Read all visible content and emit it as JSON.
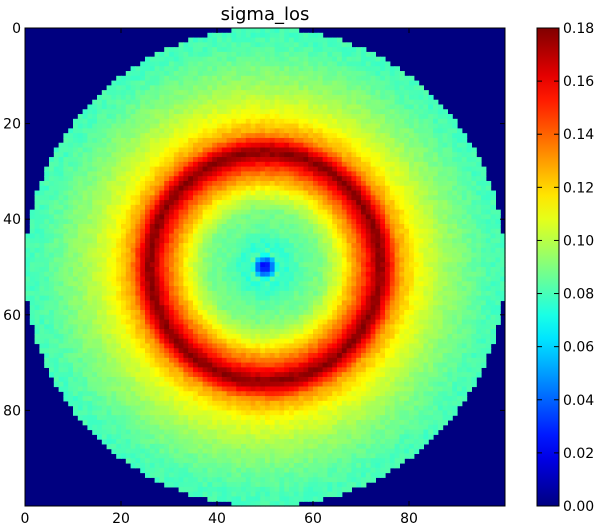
{
  "chart_data": {
    "type": "heatmap",
    "title": "sigma_los",
    "xlabel": "",
    "ylabel": "",
    "grid": 100,
    "x_range": [
      0,
      100
    ],
    "y_range": [
      0,
      100
    ],
    "y_inverted": true,
    "x_ticks": [
      "0",
      "20",
      "40",
      "60",
      "80"
    ],
    "y_ticks": [
      "0",
      "20",
      "40",
      "60",
      "80"
    ],
    "colormap": "jet",
    "colorbar": {
      "range": [
        0.0,
        0.18
      ],
      "ticks": [
        "0.00",
        "0.02",
        "0.04",
        "0.06",
        "0.08",
        "0.10",
        "0.12",
        "0.14",
        "0.16",
        "0.18"
      ]
    },
    "background_value": 0.0,
    "center": [
      50,
      50
    ],
    "radial_profile": {
      "radius": [
        0,
        1,
        2,
        3,
        4,
        6,
        8,
        12,
        16,
        20,
        22,
        23,
        24,
        25,
        28,
        32,
        38,
        44,
        48,
        50
      ],
      "value": [
        0.02,
        0.03,
        0.055,
        0.085,
        0.075,
        0.08,
        0.085,
        0.09,
        0.11,
        0.14,
        0.16,
        0.17,
        0.18,
        0.17,
        0.13,
        0.11,
        0.095,
        0.085,
        0.08,
        0.08
      ]
    },
    "mask_radius": 50
  }
}
